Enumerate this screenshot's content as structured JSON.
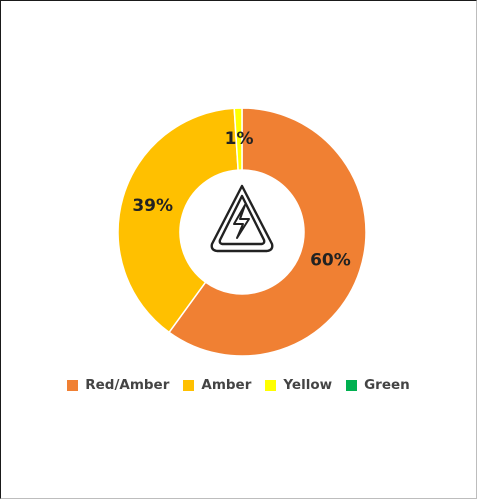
{
  "chart_data": {
    "type": "pie",
    "donut": true,
    "title": "",
    "center_icon": "high-voltage-warning-icon",
    "legend_position": "bottom",
    "categories": [
      "Red/Amber",
      "Amber",
      "Yellow",
      "Green"
    ],
    "values": [
      60,
      39,
      1,
      0
    ],
    "labels": [
      "60%",
      "39%",
      "1%",
      ""
    ],
    "colors": [
      "#F08033",
      "#FFC000",
      "#FFFF00",
      "#00B050"
    ]
  }
}
